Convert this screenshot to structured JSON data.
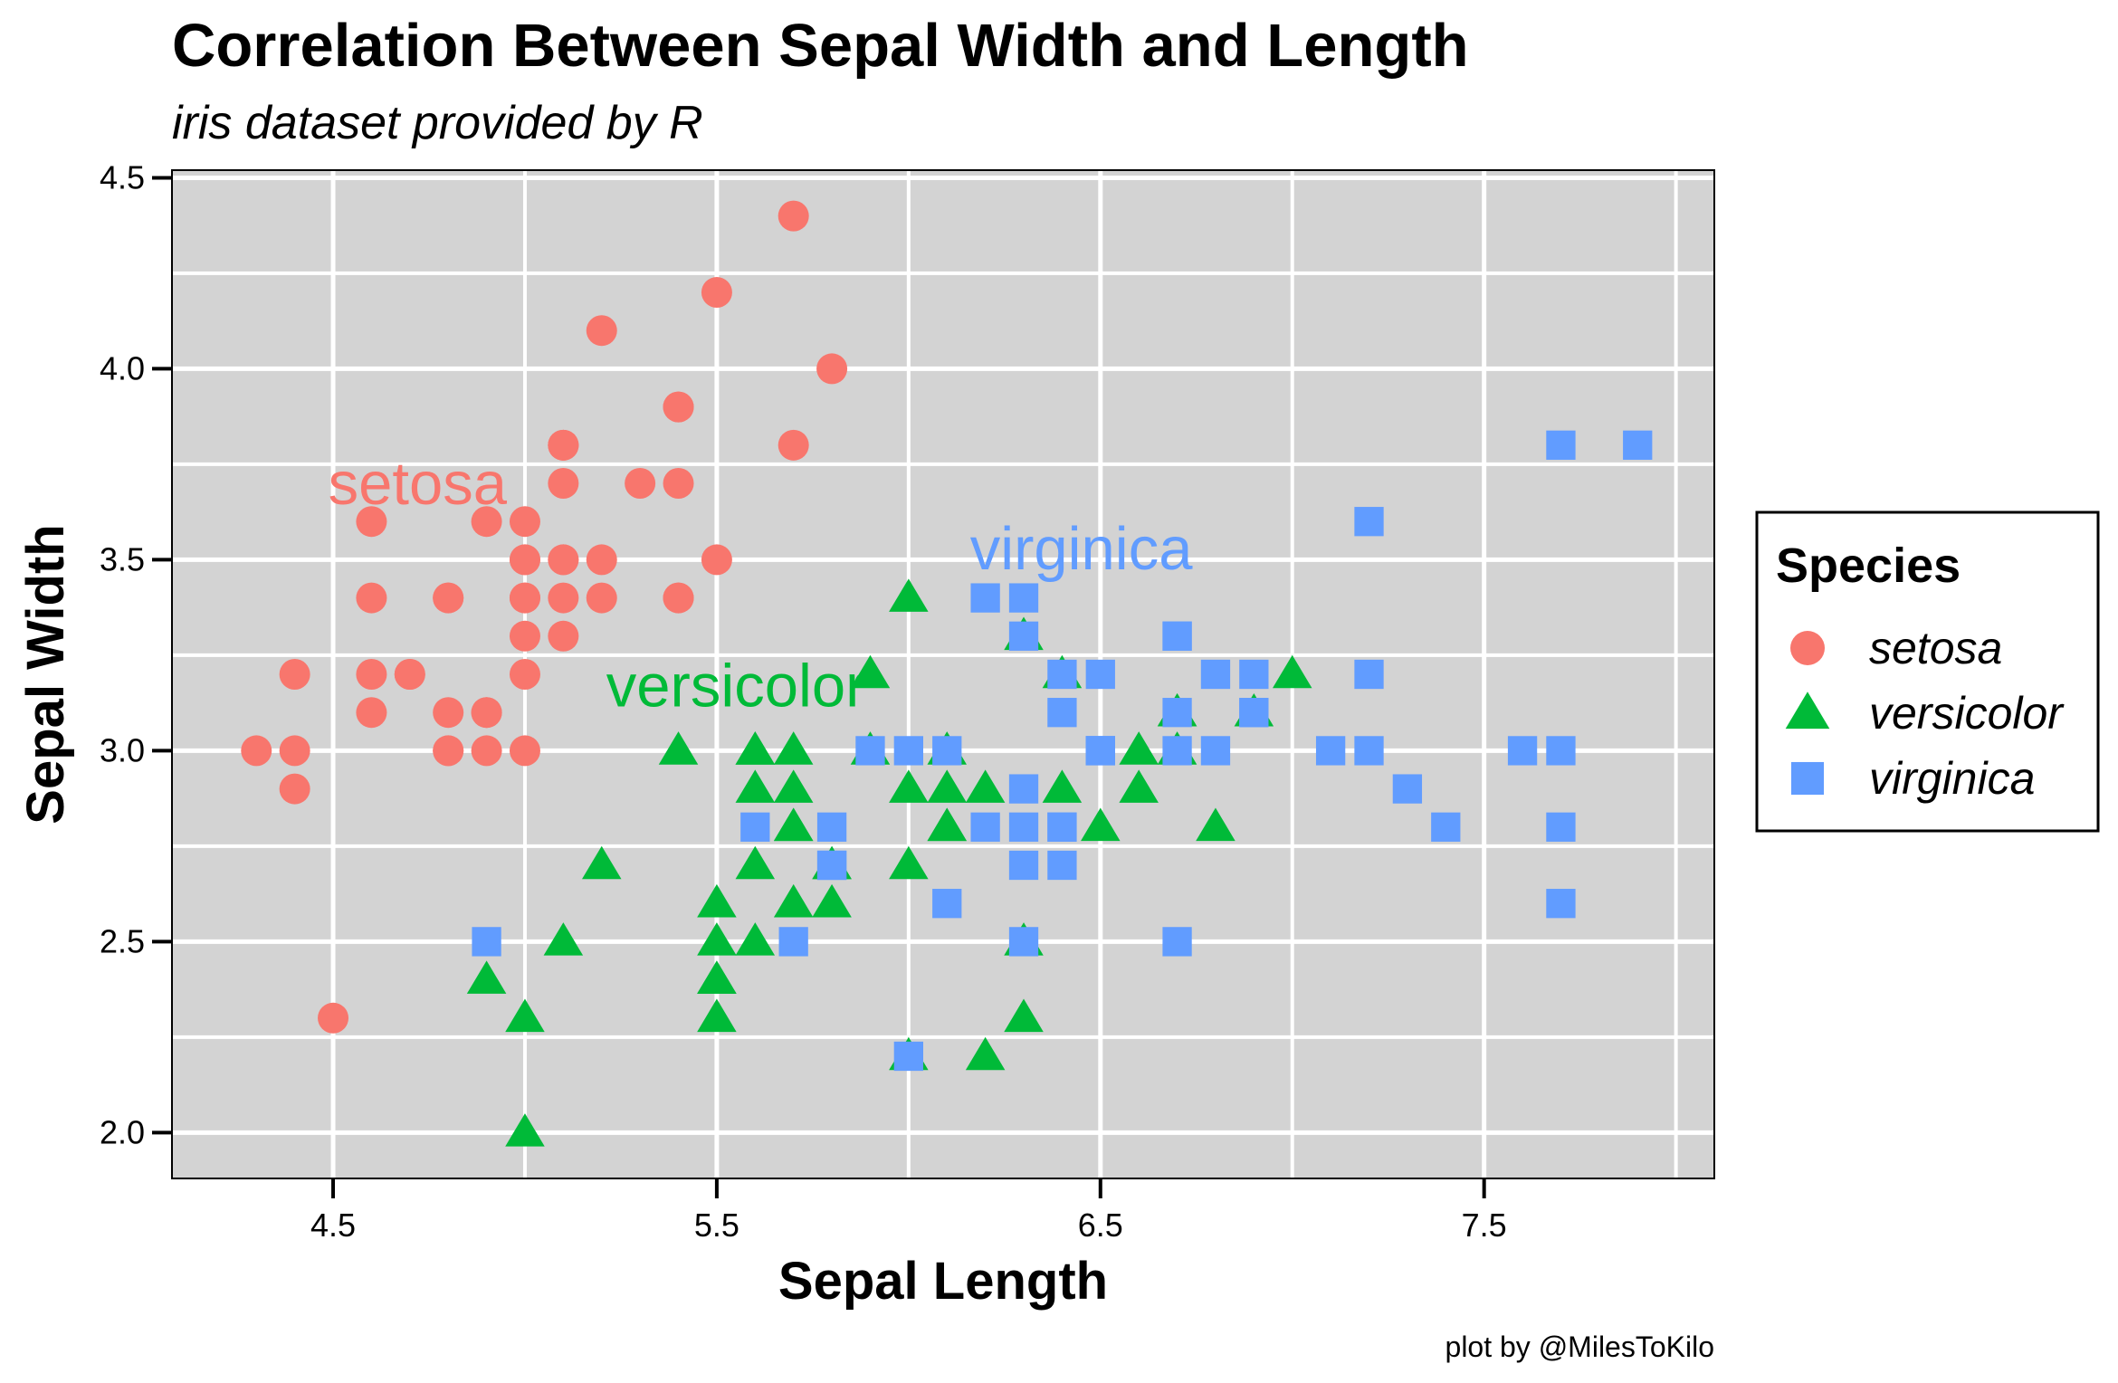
{
  "chart_data": {
    "type": "scatter",
    "title": "Correlation Between Sepal Width and Length",
    "subtitle": "iris dataset provided by R",
    "xlabel": "Sepal Length",
    "ylabel": "Sepal Width",
    "caption": "plot by @MilesToKilo",
    "xlim": [
      4.08,
      8.1
    ],
    "ylim": [
      1.88,
      4.52
    ],
    "x_ticks": [
      4.5,
      5.5,
      6.5,
      7.5
    ],
    "x_tick_labels": [
      "4.5",
      "5.5",
      "6.5",
      "7.5"
    ],
    "y_ticks": [
      2.0,
      2.5,
      3.0,
      3.5,
      4.0,
      4.5
    ],
    "y_tick_labels": [
      "2.0",
      "2.5",
      "3.0",
      "3.5",
      "4.0",
      "4.5"
    ],
    "grid": true,
    "background_color": "#d3d3d3",
    "grid_color": "#ffffff",
    "legend": {
      "title": "Species",
      "placement": "right"
    },
    "series": [
      {
        "name": "setosa",
        "color": "#F8766D",
        "shape": "circle",
        "annotation": {
          "text": "setosa",
          "x": 4.72,
          "y": 3.7
        },
        "points": [
          [
            5.1,
            3.5
          ],
          [
            4.9,
            3.0
          ],
          [
            4.7,
            3.2
          ],
          [
            4.6,
            3.1
          ],
          [
            5.0,
            3.6
          ],
          [
            5.4,
            3.9
          ],
          [
            4.6,
            3.4
          ],
          [
            5.0,
            3.4
          ],
          [
            4.4,
            2.9
          ],
          [
            4.9,
            3.1
          ],
          [
            5.4,
            3.7
          ],
          [
            4.8,
            3.4
          ],
          [
            4.8,
            3.0
          ],
          [
            4.3,
            3.0
          ],
          [
            5.8,
            4.0
          ],
          [
            5.7,
            4.4
          ],
          [
            5.4,
            3.9
          ],
          [
            5.1,
            3.5
          ],
          [
            5.7,
            3.8
          ],
          [
            5.1,
            3.8
          ],
          [
            5.4,
            3.4
          ],
          [
            5.1,
            3.7
          ],
          [
            4.6,
            3.6
          ],
          [
            5.1,
            3.3
          ],
          [
            4.8,
            3.4
          ],
          [
            5.0,
            3.0
          ],
          [
            5.0,
            3.4
          ],
          [
            5.2,
            3.5
          ],
          [
            5.2,
            3.4
          ],
          [
            4.7,
            3.2
          ],
          [
            4.8,
            3.1
          ],
          [
            5.4,
            3.4
          ],
          [
            5.2,
            4.1
          ],
          [
            5.5,
            4.2
          ],
          [
            4.9,
            3.1
          ],
          [
            5.0,
            3.2
          ],
          [
            5.5,
            3.5
          ],
          [
            4.9,
            3.6
          ],
          [
            4.4,
            3.0
          ],
          [
            5.1,
            3.4
          ],
          [
            5.0,
            3.5
          ],
          [
            4.5,
            2.3
          ],
          [
            4.4,
            3.2
          ],
          [
            5.0,
            3.5
          ],
          [
            5.1,
            3.8
          ],
          [
            4.8,
            3.0
          ],
          [
            5.1,
            3.8
          ],
          [
            4.6,
            3.2
          ],
          [
            5.3,
            3.7
          ],
          [
            5.0,
            3.3
          ]
        ]
      },
      {
        "name": "versicolor",
        "color": "#00BA38",
        "shape": "triangle",
        "annotation": {
          "text": "versicolor",
          "x": 5.55,
          "y": 3.17
        },
        "points": [
          [
            7.0,
            3.2
          ],
          [
            6.4,
            3.2
          ],
          [
            6.9,
            3.1
          ],
          [
            5.5,
            2.3
          ],
          [
            6.5,
            2.8
          ],
          [
            5.7,
            2.8
          ],
          [
            6.3,
            3.3
          ],
          [
            4.9,
            2.4
          ],
          [
            6.6,
            2.9
          ],
          [
            5.2,
            2.7
          ],
          [
            5.0,
            2.0
          ],
          [
            5.9,
            3.0
          ],
          [
            6.0,
            2.2
          ],
          [
            6.1,
            2.9
          ],
          [
            5.6,
            2.9
          ],
          [
            6.7,
            3.1
          ],
          [
            5.6,
            3.0
          ],
          [
            5.8,
            2.7
          ],
          [
            6.2,
            2.2
          ],
          [
            5.6,
            2.5
          ],
          [
            5.9,
            3.2
          ],
          [
            6.1,
            2.8
          ],
          [
            6.3,
            2.5
          ],
          [
            6.1,
            2.8
          ],
          [
            6.4,
            2.9
          ],
          [
            6.6,
            3.0
          ],
          [
            6.8,
            2.8
          ],
          [
            6.7,
            3.0
          ],
          [
            6.0,
            2.9
          ],
          [
            5.7,
            2.6
          ],
          [
            5.5,
            2.4
          ],
          [
            5.5,
            2.4
          ],
          [
            5.8,
            2.7
          ],
          [
            6.0,
            2.7
          ],
          [
            5.4,
            3.0
          ],
          [
            6.0,
            3.4
          ],
          [
            6.7,
            3.1
          ],
          [
            6.3,
            2.3
          ],
          [
            5.6,
            3.0
          ],
          [
            5.5,
            2.5
          ],
          [
            5.5,
            2.6
          ],
          [
            6.1,
            3.0
          ],
          [
            5.8,
            2.6
          ],
          [
            5.0,
            2.3
          ],
          [
            5.6,
            2.7
          ],
          [
            5.7,
            3.0
          ],
          [
            5.7,
            2.9
          ],
          [
            6.2,
            2.9
          ],
          [
            5.1,
            2.5
          ],
          [
            5.7,
            2.8
          ]
        ]
      },
      {
        "name": "virginica",
        "color": "#619CFF",
        "shape": "square",
        "annotation": {
          "text": "virginica",
          "x": 6.45,
          "y": 3.53
        },
        "points": [
          [
            6.3,
            3.3
          ],
          [
            5.8,
            2.7
          ],
          [
            7.1,
            3.0
          ],
          [
            6.3,
            2.9
          ],
          [
            6.5,
            3.0
          ],
          [
            7.6,
            3.0
          ],
          [
            4.9,
            2.5
          ],
          [
            7.3,
            2.9
          ],
          [
            6.7,
            2.5
          ],
          [
            7.2,
            3.6
          ],
          [
            6.5,
            3.2
          ],
          [
            6.4,
            2.7
          ],
          [
            6.8,
            3.0
          ],
          [
            5.7,
            2.5
          ],
          [
            5.8,
            2.8
          ],
          [
            6.4,
            3.2
          ],
          [
            6.5,
            3.0
          ],
          [
            7.7,
            3.8
          ],
          [
            7.7,
            2.6
          ],
          [
            6.0,
            2.2
          ],
          [
            6.9,
            3.2
          ],
          [
            5.6,
            2.8
          ],
          [
            7.7,
            2.8
          ],
          [
            6.3,
            2.7
          ],
          [
            6.7,
            3.3
          ],
          [
            7.2,
            3.2
          ],
          [
            6.2,
            2.8
          ],
          [
            6.1,
            3.0
          ],
          [
            6.4,
            2.8
          ],
          [
            7.2,
            3.0
          ],
          [
            7.4,
            2.8
          ],
          [
            7.9,
            3.8
          ],
          [
            6.4,
            2.8
          ],
          [
            6.3,
            2.8
          ],
          [
            6.1,
            2.6
          ],
          [
            7.7,
            3.0
          ],
          [
            6.3,
            3.4
          ],
          [
            6.4,
            3.1
          ],
          [
            6.0,
            3.0
          ],
          [
            6.9,
            3.1
          ],
          [
            6.7,
            3.1
          ],
          [
            6.9,
            3.1
          ],
          [
            5.8,
            2.7
          ],
          [
            6.8,
            3.2
          ],
          [
            6.7,
            3.3
          ],
          [
            6.7,
            3.0
          ],
          [
            6.3,
            2.5
          ],
          [
            6.5,
            3.0
          ],
          [
            6.2,
            3.4
          ],
          [
            5.9,
            3.0
          ]
        ]
      }
    ]
  }
}
